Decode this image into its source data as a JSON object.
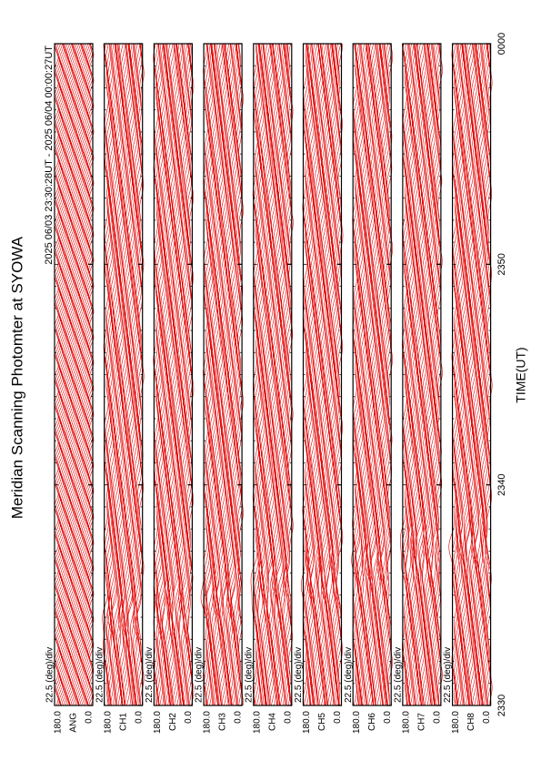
{
  "chart_data": {
    "type": "stacked-panels",
    "title": "Meridian Scanning Photomter at SYOWA",
    "subtitle": "2025 06/03 23:30:28UT - 2025 06/04 00:00:27UT",
    "xlabel": "TIME(UT)",
    "xlim": [
      0,
      30
    ],
    "xticks": [
      {
        "value": 0,
        "label": "2330"
      },
      {
        "value": 10,
        "label": "2340"
      },
      {
        "value": 20,
        "label": "2350"
      },
      {
        "value": 30,
        "label": "0000"
      }
    ],
    "scale_label": "22.5 (deg)/div",
    "ylim": [
      0,
      180
    ],
    "yticks": [
      {
        "value": 0,
        "label": "0.0"
      },
      {
        "value": 180,
        "label": "180.0"
      }
    ],
    "color": "#e00000",
    "panels": [
      "ANG",
      "CH1",
      "CH2",
      "CH3",
      "CH4",
      "CH5",
      "CH6",
      "CH7",
      "CH8"
    ]
  }
}
